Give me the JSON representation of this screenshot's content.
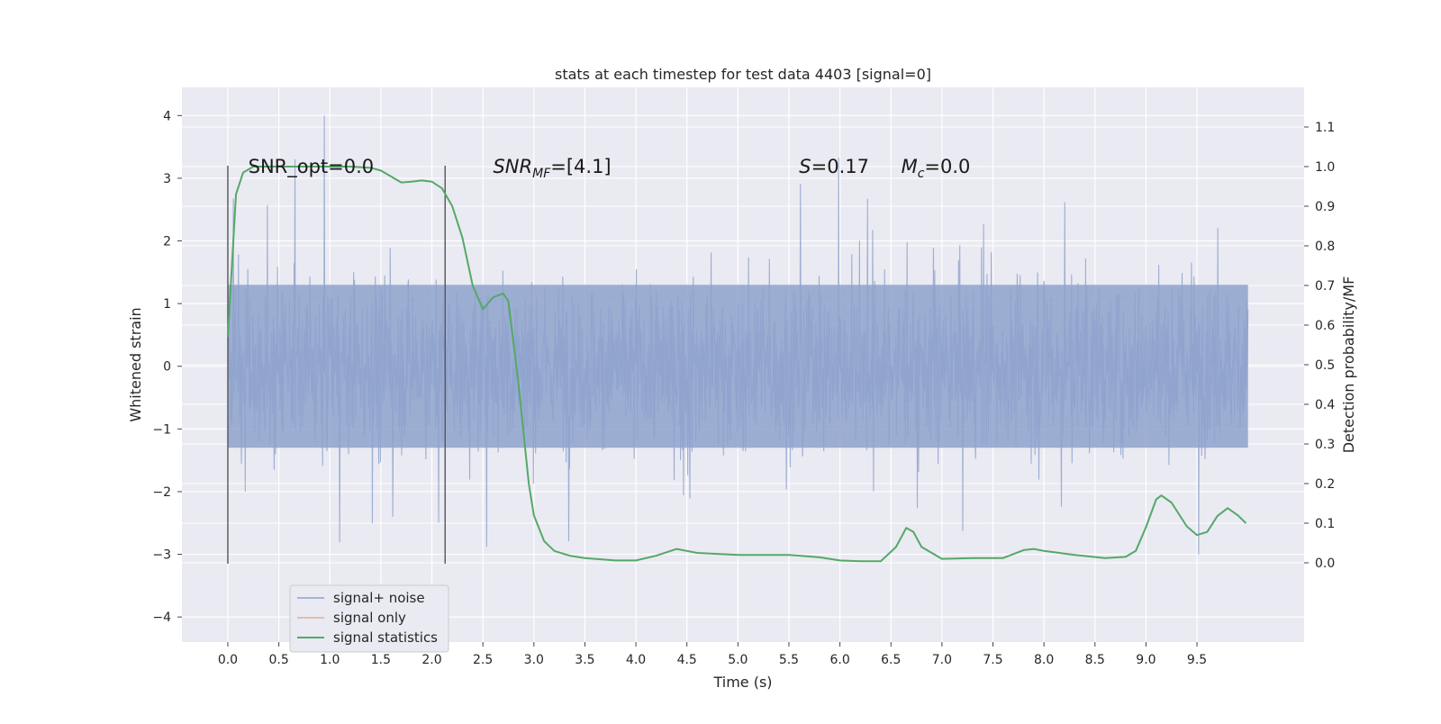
{
  "chart_data": {
    "type": "line",
    "title": "stats at each timestep for test data 4403 [signal=0]",
    "xlabel": "Time (s)",
    "ylabel": "Whitened strain",
    "y2label": "Detection probability/MF",
    "xlim": [
      -0.45,
      10.55
    ],
    "ylim": [
      -4.4,
      4.45
    ],
    "y2lim": [
      -0.2,
      1.2
    ],
    "x_ticks": [
      0.0,
      0.5,
      1.0,
      1.5,
      2.0,
      2.5,
      3.0,
      3.5,
      4.0,
      4.5,
      5.0,
      5.5,
      6.0,
      6.5,
      7.0,
      7.5,
      8.0,
      8.5,
      9.0,
      9.5
    ],
    "x_tick_labels": [
      "0.0",
      "0.5",
      "1.0",
      "1.5",
      "2.0",
      "2.5",
      "3.0",
      "3.5",
      "4.0",
      "4.5",
      "5.0",
      "5.5",
      "6.0",
      "6.5",
      "7.0",
      "7.5",
      "8.0",
      "8.5",
      "9.0",
      "9.5"
    ],
    "y_ticks": [
      -4,
      -3,
      -2,
      -1,
      0,
      1,
      2,
      3,
      4
    ],
    "y_tick_labels": [
      "−4",
      "−3",
      "−2",
      "−1",
      "0",
      "1",
      "2",
      "3",
      "4"
    ],
    "y2_ticks": [
      0.0,
      0.1,
      0.2,
      0.3,
      0.4,
      0.5,
      0.6,
      0.7,
      0.8,
      0.9,
      1.0,
      1.1
    ],
    "y2_tick_labels": [
      "0.0",
      "0.1",
      "0.2",
      "0.3",
      "0.4",
      "0.5",
      "0.6",
      "0.7",
      "0.8",
      "0.9",
      "1.0",
      "1.1"
    ],
    "grid": true,
    "legend_position": "lower-left",
    "series": [
      {
        "name": "signal+ noise",
        "axis": "left",
        "color": "#8ea2cc",
        "note_envelope": true,
        "t_start": 0.0,
        "t_end": 10.0,
        "core_amplitude": 1.3,
        "typical_peak_high": 2.0,
        "typical_peak_low": -1.9
      },
      {
        "name": "signal only",
        "axis": "left",
        "color": "#dd8452",
        "x": [],
        "y": []
      },
      {
        "name": "signal statistics",
        "axis": "right",
        "color": "#55a868",
        "x": [
          0.0,
          0.08,
          0.15,
          0.25,
          0.4,
          0.6,
          0.8,
          1.0,
          1.2,
          1.4,
          1.5,
          1.6,
          1.7,
          1.8,
          1.9,
          2.0,
          2.1,
          2.2,
          2.3,
          2.4,
          2.5,
          2.6,
          2.7,
          2.75,
          2.85,
          2.95,
          3.0,
          3.1,
          3.2,
          3.35,
          3.5,
          3.8,
          4.0,
          4.2,
          4.4,
          4.6,
          5.0,
          5.5,
          5.8,
          6.0,
          6.2,
          6.4,
          6.55,
          6.65,
          6.72,
          6.8,
          7.0,
          7.3,
          7.6,
          7.8,
          7.9,
          8.0,
          8.3,
          8.6,
          8.8,
          8.9,
          9.0,
          9.1,
          9.15,
          9.25,
          9.4,
          9.5,
          9.6,
          9.7,
          9.8,
          9.9,
          9.98
        ],
        "y": [
          0.57,
          0.93,
          0.985,
          1.0,
          1.0,
          1.0,
          1.0,
          1.0,
          1.0,
          0.997,
          0.99,
          0.975,
          0.96,
          0.962,
          0.965,
          0.962,
          0.945,
          0.9,
          0.82,
          0.7,
          0.64,
          0.67,
          0.68,
          0.66,
          0.45,
          0.2,
          0.12,
          0.055,
          0.03,
          0.018,
          0.012,
          0.006,
          0.006,
          0.018,
          0.035,
          0.025,
          0.02,
          0.02,
          0.014,
          0.006,
          0.004,
          0.004,
          0.04,
          0.088,
          0.078,
          0.04,
          0.01,
          0.012,
          0.012,
          0.032,
          0.035,
          0.03,
          0.02,
          0.012,
          0.015,
          0.03,
          0.09,
          0.16,
          0.17,
          0.152,
          0.092,
          0.07,
          0.078,
          0.118,
          0.138,
          0.12,
          0.1
        ]
      }
    ],
    "vlines": [
      0.0,
      2.13
    ],
    "annotations": [
      {
        "text": "SNR_opt=0.0",
        "x": 0.2,
        "y": 3.2
      },
      {
        "text": "SNR_MF=[4.1]",
        "x": 2.6,
        "y": 3.2,
        "math": true
      },
      {
        "text": "S=0.17",
        "x": 5.6,
        "y": 3.2,
        "math": true
      },
      {
        "text": "M_c=0.0",
        "x": 6.6,
        "y": 3.2,
        "math": true
      }
    ]
  }
}
